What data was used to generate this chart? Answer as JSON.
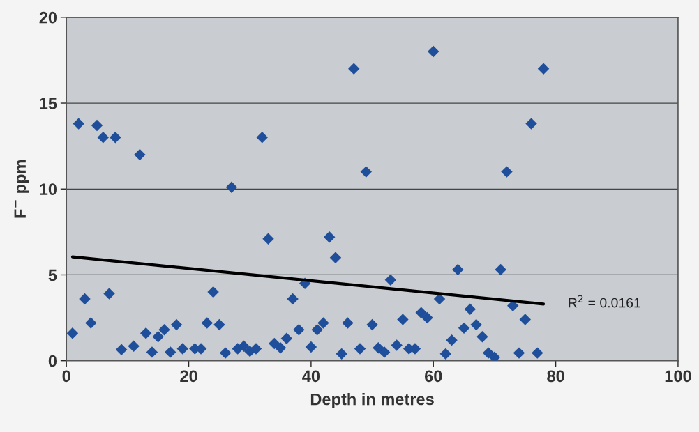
{
  "chart_data": {
    "type": "scatter",
    "xlabel": "Depth in metres",
    "ylabel": "F$^{−}$ ppm",
    "xlim": [
      0,
      100
    ],
    "ylim": [
      0,
      20
    ],
    "xticks": [
      0,
      20,
      40,
      60,
      80,
      100
    ],
    "yticks": [
      0,
      5,
      10,
      15,
      20
    ],
    "grid": "y",
    "legend": false,
    "annotations": [
      "R$^{2}$ = 0.0161"
    ],
    "series": [
      {
        "marker": "diamond",
        "color": "#1f4e9a",
        "x": [
          1,
          2,
          3,
          4,
          5,
          6,
          7,
          8,
          9,
          11,
          12,
          13,
          14,
          15,
          16,
          17,
          18,
          19,
          21,
          22,
          23,
          24,
          25,
          26,
          27,
          28,
          29,
          30,
          31,
          32,
          33,
          34,
          35,
          36,
          37,
          38,
          39,
          40,
          41,
          42,
          43,
          44,
          45,
          46,
          47,
          48,
          49,
          50,
          51,
          52,
          53,
          54,
          55,
          56,
          57,
          58,
          59,
          60,
          61,
          62,
          63,
          64,
          65,
          66,
          67,
          68,
          69,
          70,
          71,
          72,
          73,
          74,
          75,
          76,
          77,
          78
        ],
        "values": [
          1.6,
          13.8,
          3.6,
          2.2,
          13.7,
          13.0,
          3.9,
          13.0,
          0.65,
          0.85,
          12.0,
          1.6,
          0.5,
          1.4,
          1.8,
          0.5,
          2.1,
          0.7,
          0.7,
          0.7,
          2.2,
          4.0,
          2.1,
          0.45,
          10.1,
          0.7,
          0.85,
          0.55,
          0.7,
          13.0,
          7.1,
          1.0,
          0.75,
          1.3,
          3.6,
          1.8,
          4.5,
          0.8,
          1.8,
          2.2,
          7.2,
          6.0,
          0.4,
          2.2,
          17.0,
          0.7,
          11.0,
          2.1,
          0.75,
          0.5,
          4.7,
          0.9,
          2.4,
          0.7,
          0.7,
          2.8,
          2.5,
          18.0,
          3.6,
          0.4,
          1.2,
          5.3,
          1.9,
          3.0,
          2.1,
          1.4,
          0.45,
          0.2,
          5.3,
          11.0,
          3.2,
          0.45,
          2.4,
          13.8,
          0.45,
          17.0
        ]
      },
      {
        "type": "line",
        "marker": "none",
        "color": "#000000",
        "x": [
          1,
          78
        ],
        "values": [
          6.05,
          3.3
        ]
      }
    ]
  }
}
